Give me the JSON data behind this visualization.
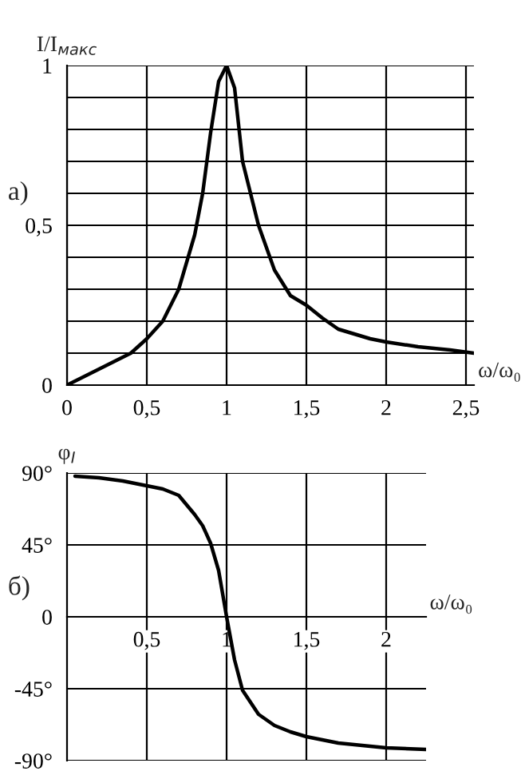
{
  "chart_data": [
    {
      "type": "line",
      "ylabel": "I/I$_{макс}$",
      "xlabel": "ω/ω₀",
      "annotations": [
        "a)"
      ],
      "x": [
        0,
        0.1,
        0.2,
        0.3,
        0.4,
        0.5,
        0.6,
        0.7,
        0.8,
        0.85,
        0.9,
        0.95,
        1.0,
        1.05,
        1.1,
        1.2,
        1.3,
        1.4,
        1.5,
        1.6,
        1.7,
        1.8,
        1.9,
        2.0,
        2.2,
        2.4,
        2.55
      ],
      "series": [
        {
          "color": "#000000",
          "values": [
            0,
            0.025,
            0.05,
            0.075,
            0.1,
            0.145,
            0.2,
            0.3,
            0.47,
            0.6,
            0.79,
            0.95,
            1.0,
            0.93,
            0.7,
            0.5,
            0.36,
            0.28,
            0.25,
            0.21,
            0.175,
            0.16,
            0.145,
            0.135,
            0.12,
            0.11,
            0.1
          ]
        }
      ],
      "xlim": [
        0,
        2.55
      ],
      "ylim": [
        0,
        1
      ],
      "xticks": [
        {
          "value": 0,
          "label": "0"
        },
        {
          "value": 0.5,
          "label": "0,5"
        },
        {
          "value": 1,
          "label": "1"
        },
        {
          "value": 1.5,
          "label": "1,5"
        },
        {
          "value": 2,
          "label": "2"
        },
        {
          "value": 2.5,
          "label": "2,5"
        }
      ],
      "yticks": [
        {
          "value": 0,
          "label": "0"
        },
        {
          "value": 0.1,
          "label": null
        },
        {
          "value": 0.2,
          "label": null
        },
        {
          "value": 0.3,
          "label": null
        },
        {
          "value": 0.4,
          "label": null
        },
        {
          "value": 0.5,
          "label": "0,5"
        },
        {
          "value": 0.6,
          "label": null
        },
        {
          "value": 0.7,
          "label": null
        },
        {
          "value": 0.8,
          "label": null
        },
        {
          "value": 0.9,
          "label": null
        },
        {
          "value": 1,
          "label": "1"
        }
      ],
      "grid": true,
      "legend": false
    },
    {
      "type": "line",
      "ylabel": "φ$_{I}$",
      "xlabel": "ω/ω₀",
      "annotations": [
        "б)"
      ],
      "x": [
        0.05,
        0.2,
        0.35,
        0.5,
        0.6,
        0.7,
        0.8,
        0.85,
        0.9,
        0.95,
        1.0,
        1.05,
        1.1,
        1.2,
        1.3,
        1.4,
        1.5,
        1.7,
        2.0,
        2.25
      ],
      "series": [
        {
          "color": "#000000",
          "values": [
            88,
            87,
            85,
            82,
            80,
            76,
            64,
            57,
            46,
            29,
            0,
            -27,
            -46,
            -61,
            -68,
            -72,
            -75,
            -79,
            -82,
            -83
          ]
        }
      ],
      "xlim": [
        0,
        2.25
      ],
      "ylim": [
        -90,
        90
      ],
      "xticks": [
        {
          "value": 0.5,
          "label": "0,5"
        },
        {
          "value": 1,
          "label": "1"
        },
        {
          "value": 1.5,
          "label": "1,5"
        },
        {
          "value": 2,
          "label": "2"
        }
      ],
      "yticks": [
        {
          "value": -90,
          "label": "-90°"
        },
        {
          "value": -45,
          "label": "-45°"
        },
        {
          "value": 0,
          "label": "0"
        },
        {
          "value": 45,
          "label": "45°"
        },
        {
          "value": 90,
          "label": "90°"
        }
      ],
      "grid": true,
      "legend": false
    }
  ]
}
